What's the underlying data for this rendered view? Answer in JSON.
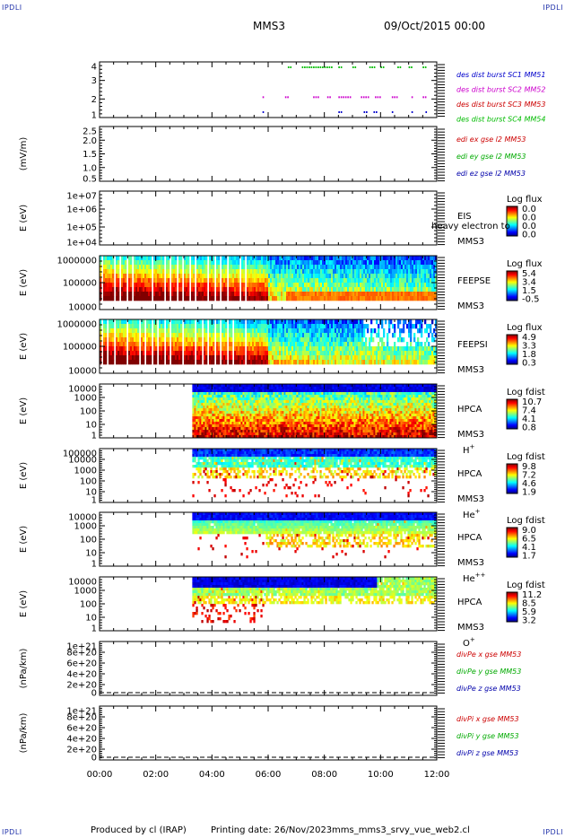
{
  "header": {
    "corner_label": "IPDLI",
    "title": "MMS3",
    "date": "09/Oct/2015 00:00"
  },
  "footer": {
    "produced_by": "Produced by cl (IRAP)",
    "printing_date": "Printing date: 26/Nov/2023",
    "script_name": "mms_mms3_srvy_vue_web2.cl"
  },
  "chart_data": {
    "type": "multi-panel time series",
    "x_ticks": [
      "00:00",
      "02:00",
      "04:00",
      "06:00",
      "08:00",
      "10:00",
      "12:00"
    ],
    "x_range_hours": [
      0,
      12
    ],
    "panels": [
      {
        "id": "burst",
        "type": "scatter",
        "ylabel": "",
        "y_ticks": [
          "4",
          "3",
          "2",
          "1"
        ],
        "y_range": [
          0.5,
          4.5
        ],
        "series": [
          {
            "name": "des dist burst SC1 MM51",
            "color": "#0000cc",
            "level": 1,
            "segments": [
              [
                5.8,
                5.85
              ],
              [
                8.5,
                8.6
              ],
              [
                9.4,
                9.5
              ],
              [
                9.75,
                9.9
              ],
              [
                10.4,
                10.45
              ],
              [
                11.1,
                11.15
              ],
              [
                11.6,
                11.65
              ]
            ]
          },
          {
            "name": "des dist burst SC2 MM52",
            "color": "#cc00cc",
            "level": 2,
            "segments": [
              [
                5.8,
                5.85
              ],
              [
                6.6,
                6.7
              ],
              [
                7.6,
                7.8
              ],
              [
                8.1,
                8.2
              ],
              [
                8.5,
                8.9
              ],
              [
                9.3,
                9.6
              ],
              [
                9.8,
                10.0
              ],
              [
                10.4,
                10.6
              ],
              [
                11.1,
                11.15
              ],
              [
                11.5,
                11.6
              ]
            ]
          },
          {
            "name": "des dist burst SC3 MM53",
            "color": "#cc0000",
            "level": 3,
            "segments": []
          },
          {
            "name": "des dist burst SC4 MM54",
            "color": "#00bb00",
            "level": 4,
            "segments": [
              [
                6.7,
                6.8
              ],
              [
                7.2,
                8.3
              ],
              [
                8.5,
                8.6
              ],
              [
                9.0,
                9.1
              ],
              [
                9.6,
                9.8
              ],
              [
                10.0,
                10.1
              ],
              [
                10.6,
                10.7
              ],
              [
                11.0,
                11.1
              ],
              [
                11.5,
                11.6
              ]
            ]
          }
        ]
      },
      {
        "id": "edi",
        "type": "line",
        "ylabel": "(mV/m)",
        "y_ticks": [
          "2.5",
          "2.0",
          "1.5",
          "1.0",
          "0.5"
        ],
        "y_range": [
          0.5,
          2.5
        ],
        "series": [
          {
            "name": "edi ex gse l2 MM53",
            "color": "#cc0000",
            "values": []
          },
          {
            "name": "edi ey gse l2 MM53",
            "color": "#00aa00",
            "values": []
          },
          {
            "name": "edi ez gse l2 MM53",
            "color": "#0000aa",
            "values": []
          }
        ]
      },
      {
        "id": "eis",
        "type": "heatmap",
        "ylabel": "E (eV)",
        "y_ticks": [
          "1e+07",
          "1e+06",
          "1e+05",
          "1e+04"
        ],
        "label_lines": [
          "EIS",
          "MMS3"
        ],
        "overlay_text": "heavy electron to",
        "colorbar_title": "Log flux",
        "colorbar_ticks": [
          "0.0",
          "0.0",
          "0.0",
          "0.0"
        ]
      },
      {
        "id": "feepse",
        "type": "heatmap",
        "ylabel": "E (eV)",
        "y_ticks": [
          "1000000",
          "100000",
          "10000"
        ],
        "label_lines": [
          "FEEPSE",
          "MMS3"
        ],
        "colorbar_title": "Log flux",
        "colorbar_ticks": [
          "5.4",
          "3.4",
          "1.5",
          "-0.5"
        ],
        "data_start_hour": 0.0
      },
      {
        "id": "feepsi",
        "type": "heatmap",
        "ylabel": "E (eV)",
        "y_ticks": [
          "1000000",
          "100000",
          "10000"
        ],
        "label_lines": [
          "FEEPSI",
          "MMS3"
        ],
        "colorbar_title": "Log flux",
        "colorbar_ticks": [
          "4.9",
          "3.3",
          "1.8",
          "0.3"
        ],
        "data_start_hour": 0.0
      },
      {
        "id": "hpca_h",
        "type": "heatmap",
        "ylabel": "E (eV)",
        "y_ticks": [
          "10000",
          "1000",
          "100",
          "10",
          "1"
        ],
        "label_lines": [
          "HPCA",
          "MMS3"
        ],
        "species": "H",
        "species_sup": "+",
        "colorbar_title": "Log fdist",
        "colorbar_ticks": [
          "10.7",
          "7.4",
          "4.1",
          "0.8"
        ],
        "data_start_hour": 3.3
      },
      {
        "id": "hpca_he",
        "type": "heatmap",
        "ylabel": "E (eV)",
        "y_ticks": [
          "100000",
          "10000",
          "1000",
          "100",
          "10",
          "1"
        ],
        "label_lines": [
          "HPCA",
          "MMS3"
        ],
        "species": "He",
        "species_sup": "+",
        "colorbar_title": "Log fdist",
        "colorbar_ticks": [
          "9.8",
          "7.2",
          "4.6",
          "1.9"
        ],
        "data_start_hour": 3.3
      },
      {
        "id": "hpca_hepp",
        "type": "heatmap",
        "ylabel": "E (eV)",
        "y_ticks": [
          "10000",
          "1000",
          "100",
          "10",
          "1"
        ],
        "label_lines": [
          "HPCA",
          "MMS3"
        ],
        "species": "He",
        "species_sup": "++",
        "colorbar_title": "Log fdist",
        "colorbar_ticks": [
          "9.0",
          "6.5",
          "4.1",
          "1.7"
        ],
        "data_start_hour": 3.3
      },
      {
        "id": "hpca_o",
        "type": "heatmap",
        "ylabel": "E (eV)",
        "y_ticks": [
          "10000",
          "1000",
          "100",
          "10",
          "1"
        ],
        "label_lines": [
          "HPCA",
          "MMS3"
        ],
        "species": "O",
        "species_sup": "+",
        "colorbar_title": "Log fdist",
        "colorbar_ticks": [
          "11.2",
          "8.5",
          "5.9",
          "3.2"
        ],
        "data_start_hour": 3.3
      },
      {
        "id": "divpe",
        "type": "line",
        "ylabel": "(nPa/km)",
        "y_ticks": [
          "1e+21",
          "8e+20",
          "6e+20",
          "4e+20",
          "2e+20",
          "0"
        ],
        "y_range": [
          0,
          1.1e+21
        ],
        "zero_line": true,
        "series": [
          {
            "name": "divPe x gse MM53",
            "color": "#cc0000",
            "values": []
          },
          {
            "name": "divPe y gse MM53",
            "color": "#00aa00",
            "values": []
          },
          {
            "name": "divPe z gse MM53",
            "color": "#0000aa",
            "values": []
          }
        ]
      },
      {
        "id": "divpi",
        "type": "line",
        "ylabel": "(nPa/km)",
        "y_ticks": [
          "1e+21",
          "8e+20",
          "6e+20",
          "4e+20",
          "2e+20",
          "0"
        ],
        "y_range": [
          0,
          1.1e+21
        ],
        "zero_line": true,
        "series": [
          {
            "name": "divPi x gse MM53",
            "color": "#cc0000",
            "values": []
          },
          {
            "name": "divPi y gse MM53",
            "color": "#00aa00",
            "values": []
          },
          {
            "name": "divPi z gse MM53",
            "color": "#0000aa",
            "values": []
          }
        ]
      }
    ]
  }
}
